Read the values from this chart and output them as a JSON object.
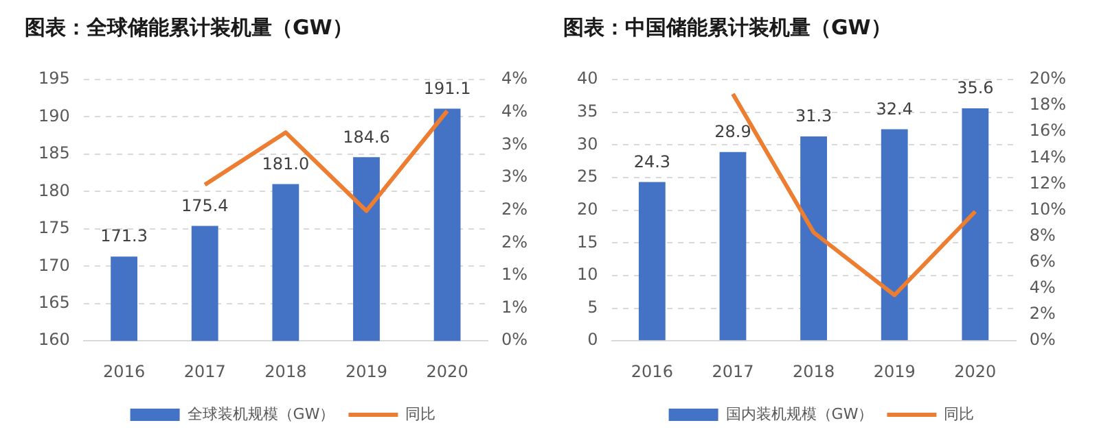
{
  "chart_data": [
    {
      "type": "bar",
      "title": "图表：全球储能累计装机量（GW）",
      "categories": [
        "2016",
        "2017",
        "2018",
        "2019",
        "2020"
      ],
      "series": [
        {
          "name": "全球装机规模（GW）",
          "color": "#4472c4",
          "values": [
            171.3,
            175.4,
            181.0,
            184.6,
            191.1
          ],
          "value_labels": [
            "171.3",
            "175.4",
            "181.0",
            "184.6",
            "191.1"
          ]
        },
        {
          "name": "同比",
          "type": "line",
          "axis": "y2",
          "color": "#ed7d31",
          "values": [
            null,
            2.39,
            3.19,
            1.99,
            3.52
          ]
        }
      ],
      "ylim": [
        160,
        195
      ],
      "yticks": [
        160,
        165,
        170,
        175,
        180,
        185,
        190,
        195
      ],
      "y2lim": [
        0,
        4
      ],
      "y2ticks": [
        {
          "value": 0,
          "label": "0%"
        },
        {
          "value": 0.5,
          "label": "1%"
        },
        {
          "value": 1,
          "label": "1%"
        },
        {
          "value": 1.5,
          "label": "2%"
        },
        {
          "value": 2,
          "label": "2%"
        },
        {
          "value": 2.5,
          "label": "3%"
        },
        {
          "value": 3,
          "label": "3%"
        },
        {
          "value": 3.5,
          "label": "4%"
        },
        {
          "value": 4,
          "label": "4%"
        }
      ],
      "grid": "y",
      "legend": "bottom",
      "marker": "none",
      "line_style": "solid"
    },
    {
      "type": "bar",
      "title": "图表：中国储能累计装机量（GW）",
      "categories": [
        "2016",
        "2017",
        "2018",
        "2019",
        "2020"
      ],
      "series": [
        {
          "name": "国内装机规模（GW）",
          "color": "#4472c4",
          "values": [
            24.3,
            28.9,
            31.3,
            32.4,
            35.6
          ],
          "value_labels": [
            "24.3",
            "28.9",
            "31.3",
            "32.4",
            "35.6"
          ]
        },
        {
          "name": "同比",
          "type": "line",
          "axis": "y2",
          "color": "#ed7d31",
          "values": [
            null,
            18.9,
            8.3,
            3.5,
            9.9
          ]
        }
      ],
      "ylim": [
        0,
        40
      ],
      "yticks": [
        0,
        5,
        10,
        15,
        20,
        25,
        30,
        35,
        40
      ],
      "y2lim": [
        0,
        20
      ],
      "y2ticks": [
        {
          "value": 0,
          "label": "0%"
        },
        {
          "value": 2,
          "label": "2%"
        },
        {
          "value": 4,
          "label": "4%"
        },
        {
          "value": 6,
          "label": "6%"
        },
        {
          "value": 8,
          "label": "8%"
        },
        {
          "value": 10,
          "label": "10%"
        },
        {
          "value": 12,
          "label": "12%"
        },
        {
          "value": 14,
          "label": "14%"
        },
        {
          "value": 16,
          "label": "16%"
        },
        {
          "value": 18,
          "label": "18%"
        },
        {
          "value": 20,
          "label": "20%"
        }
      ],
      "grid": "y",
      "legend": "bottom",
      "marker": "none",
      "line_style": "solid"
    }
  ]
}
